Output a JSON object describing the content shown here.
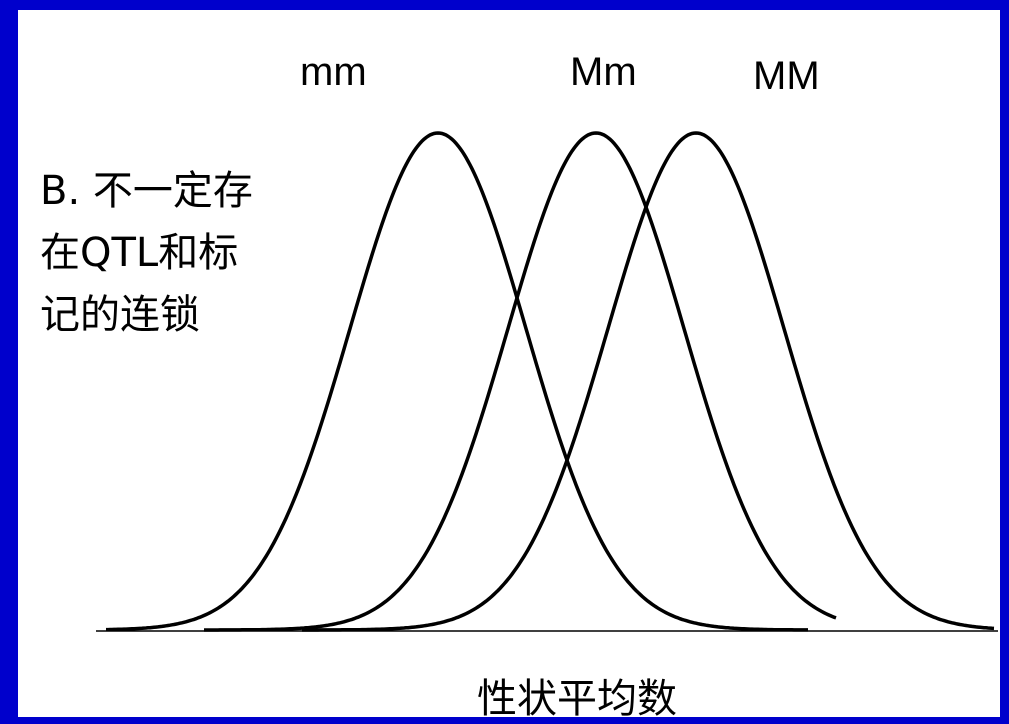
{
  "genotype_labels": {
    "mm": "mm",
    "Mm": "Mm",
    "MM": "MM"
  },
  "note_lines": [
    "B. 不一定存",
    "在QTL和标",
    "记的连锁"
  ],
  "xlabel": "性状平均数",
  "colors": {
    "background": "#0000cc",
    "panel": "#ffffff",
    "ink": "#000000"
  }
}
